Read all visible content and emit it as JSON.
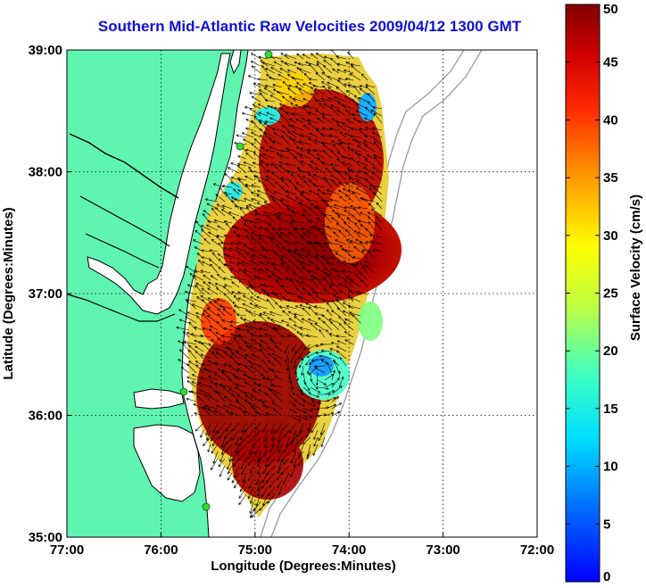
{
  "title": "Southern Mid-Atlantic Raw Velocities 2009/04/12 1300 GMT",
  "map": {
    "xlabel": "Longitude (Degrees:Minutes)",
    "ylabel": "Latitude (Degrees:Minutes)",
    "lon_ticks": [
      "77:00",
      "76:00",
      "75:00",
      "74:00",
      "73:00",
      "72:00"
    ],
    "lat_ticks": [
      "39:00",
      "38:00",
      "37:00",
      "36:00",
      "35:00"
    ],
    "lon_range": [
      -77,
      -72
    ],
    "lat_range": [
      35,
      39
    ],
    "land_color": "#5ff5b0",
    "coastline_color": "#000000",
    "isobath_color": "#9a9a9a"
  },
  "colorbar": {
    "label": "Surface Velocity (cm/s)",
    "ticks": [
      "0",
      "5",
      "10",
      "15",
      "20",
      "25",
      "30",
      "35",
      "40",
      "45",
      "50"
    ],
    "range": [
      0,
      50
    ],
    "colormap": "jet"
  }
}
